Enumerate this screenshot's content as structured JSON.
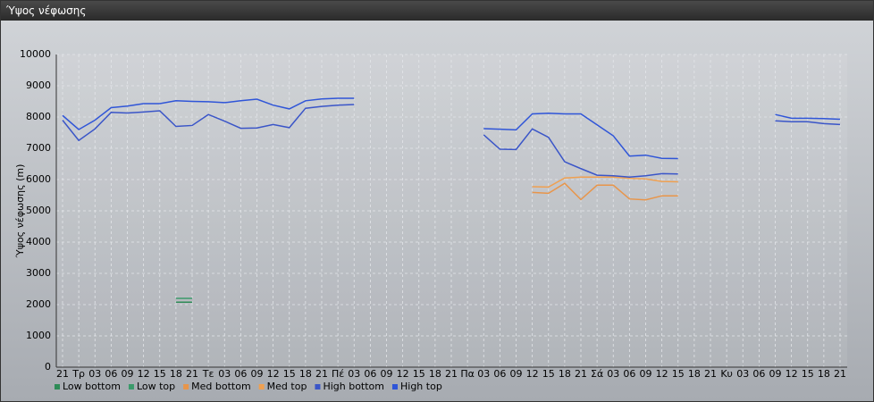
{
  "window_title": "Ύψος νέφωσης",
  "chart_data": {
    "type": "line",
    "y_label": "Ύψος νέφωσης (m)",
    "categories": [
      "21",
      "Τρ",
      "03",
      "06",
      "09",
      "12",
      "15",
      "18",
      "21",
      "Τε",
      "03",
      "06",
      "09",
      "12",
      "15",
      "18",
      "21",
      "Πέ",
      "03",
      "06",
      "09",
      "12",
      "15",
      "18",
      "21",
      "Πα",
      "03",
      "06",
      "09",
      "12",
      "15",
      "18",
      "21",
      "Σά",
      "03",
      "06",
      "09",
      "12",
      "15",
      "18",
      "21",
      "Κυ",
      "03",
      "06",
      "09",
      "12",
      "15",
      "18",
      "21"
    ],
    "ylim": [
      0,
      10000
    ],
    "yticks": [
      0,
      1000,
      2000,
      3000,
      4000,
      5000,
      6000,
      7000,
      8000,
      9000,
      10000
    ],
    "grid": true,
    "series": [
      {
        "name": "Low bottom",
        "color": "#2e8b57",
        "values": [
          null,
          null,
          null,
          null,
          null,
          null,
          null,
          2080,
          2080,
          null,
          null,
          null,
          null,
          null,
          null,
          null,
          null,
          null,
          null,
          null,
          null,
          null,
          null,
          null,
          null,
          null,
          null,
          null,
          null,
          null,
          null,
          null,
          null,
          null,
          null,
          null,
          null,
          null,
          null,
          null,
          null,
          null,
          null,
          null,
          null,
          null,
          null,
          null,
          null
        ]
      },
      {
        "name": "Low top",
        "color": "#3a9a6a",
        "values": [
          null,
          null,
          null,
          null,
          null,
          null,
          null,
          2200,
          2200,
          null,
          null,
          null,
          null,
          null,
          null,
          null,
          null,
          null,
          null,
          null,
          null,
          null,
          null,
          null,
          null,
          null,
          null,
          null,
          null,
          null,
          null,
          null,
          null,
          null,
          null,
          null,
          null,
          null,
          null,
          null,
          null,
          null,
          null,
          null,
          null,
          null,
          null,
          null,
          null
        ]
      },
      {
        "name": "Med bottom",
        "color": "#e8954a",
        "values": [
          null,
          null,
          null,
          null,
          null,
          null,
          null,
          null,
          null,
          null,
          null,
          null,
          null,
          null,
          null,
          null,
          null,
          null,
          null,
          null,
          null,
          null,
          null,
          null,
          null,
          null,
          null,
          null,
          null,
          5590,
          5560,
          5880,
          5360,
          5820,
          5820,
          5380,
          5350,
          5480,
          5480,
          null,
          null,
          null,
          null,
          null,
          null,
          null,
          null,
          null,
          null
        ]
      },
      {
        "name": "Med top",
        "color": "#f0a050",
        "values": [
          null,
          null,
          null,
          null,
          null,
          null,
          null,
          null,
          null,
          null,
          null,
          null,
          null,
          null,
          null,
          null,
          null,
          null,
          null,
          null,
          null,
          null,
          null,
          null,
          null,
          null,
          null,
          null,
          null,
          5770,
          5760,
          6050,
          6080,
          6080,
          6080,
          6040,
          6020,
          5940,
          5930,
          null,
          null,
          null,
          null,
          null,
          null,
          null,
          null,
          null,
          null
        ]
      },
      {
        "name": "High bottom",
        "color": "#3a55c8",
        "values": [
          7900,
          7250,
          7620,
          8150,
          8130,
          8160,
          8200,
          7700,
          7730,
          8080,
          7870,
          7640,
          7650,
          7760,
          7660,
          8280,
          8340,
          8380,
          8400,
          null,
          null,
          null,
          null,
          null,
          null,
          null,
          7430,
          6970,
          6960,
          7620,
          7350,
          6570,
          6350,
          6140,
          6120,
          6080,
          6120,
          6190,
          6180,
          null,
          null,
          null,
          null,
          null,
          7880,
          7850,
          7850,
          7790,
          7760
        ]
      },
      {
        "name": "High top",
        "color": "#2f55d8",
        "values": [
          8050,
          7600,
          7900,
          8300,
          8350,
          8430,
          8430,
          8520,
          8500,
          8490,
          8460,
          8520,
          8570,
          8380,
          8260,
          8520,
          8580,
          8600,
          8600,
          null,
          null,
          null,
          null,
          null,
          null,
          null,
          7630,
          7610,
          7590,
          8100,
          8120,
          8100,
          8100,
          7750,
          7400,
          6750,
          6780,
          6680,
          6670,
          null,
          null,
          null,
          null,
          null,
          8080,
          7960,
          7960,
          7950,
          7930
        ]
      }
    ]
  }
}
